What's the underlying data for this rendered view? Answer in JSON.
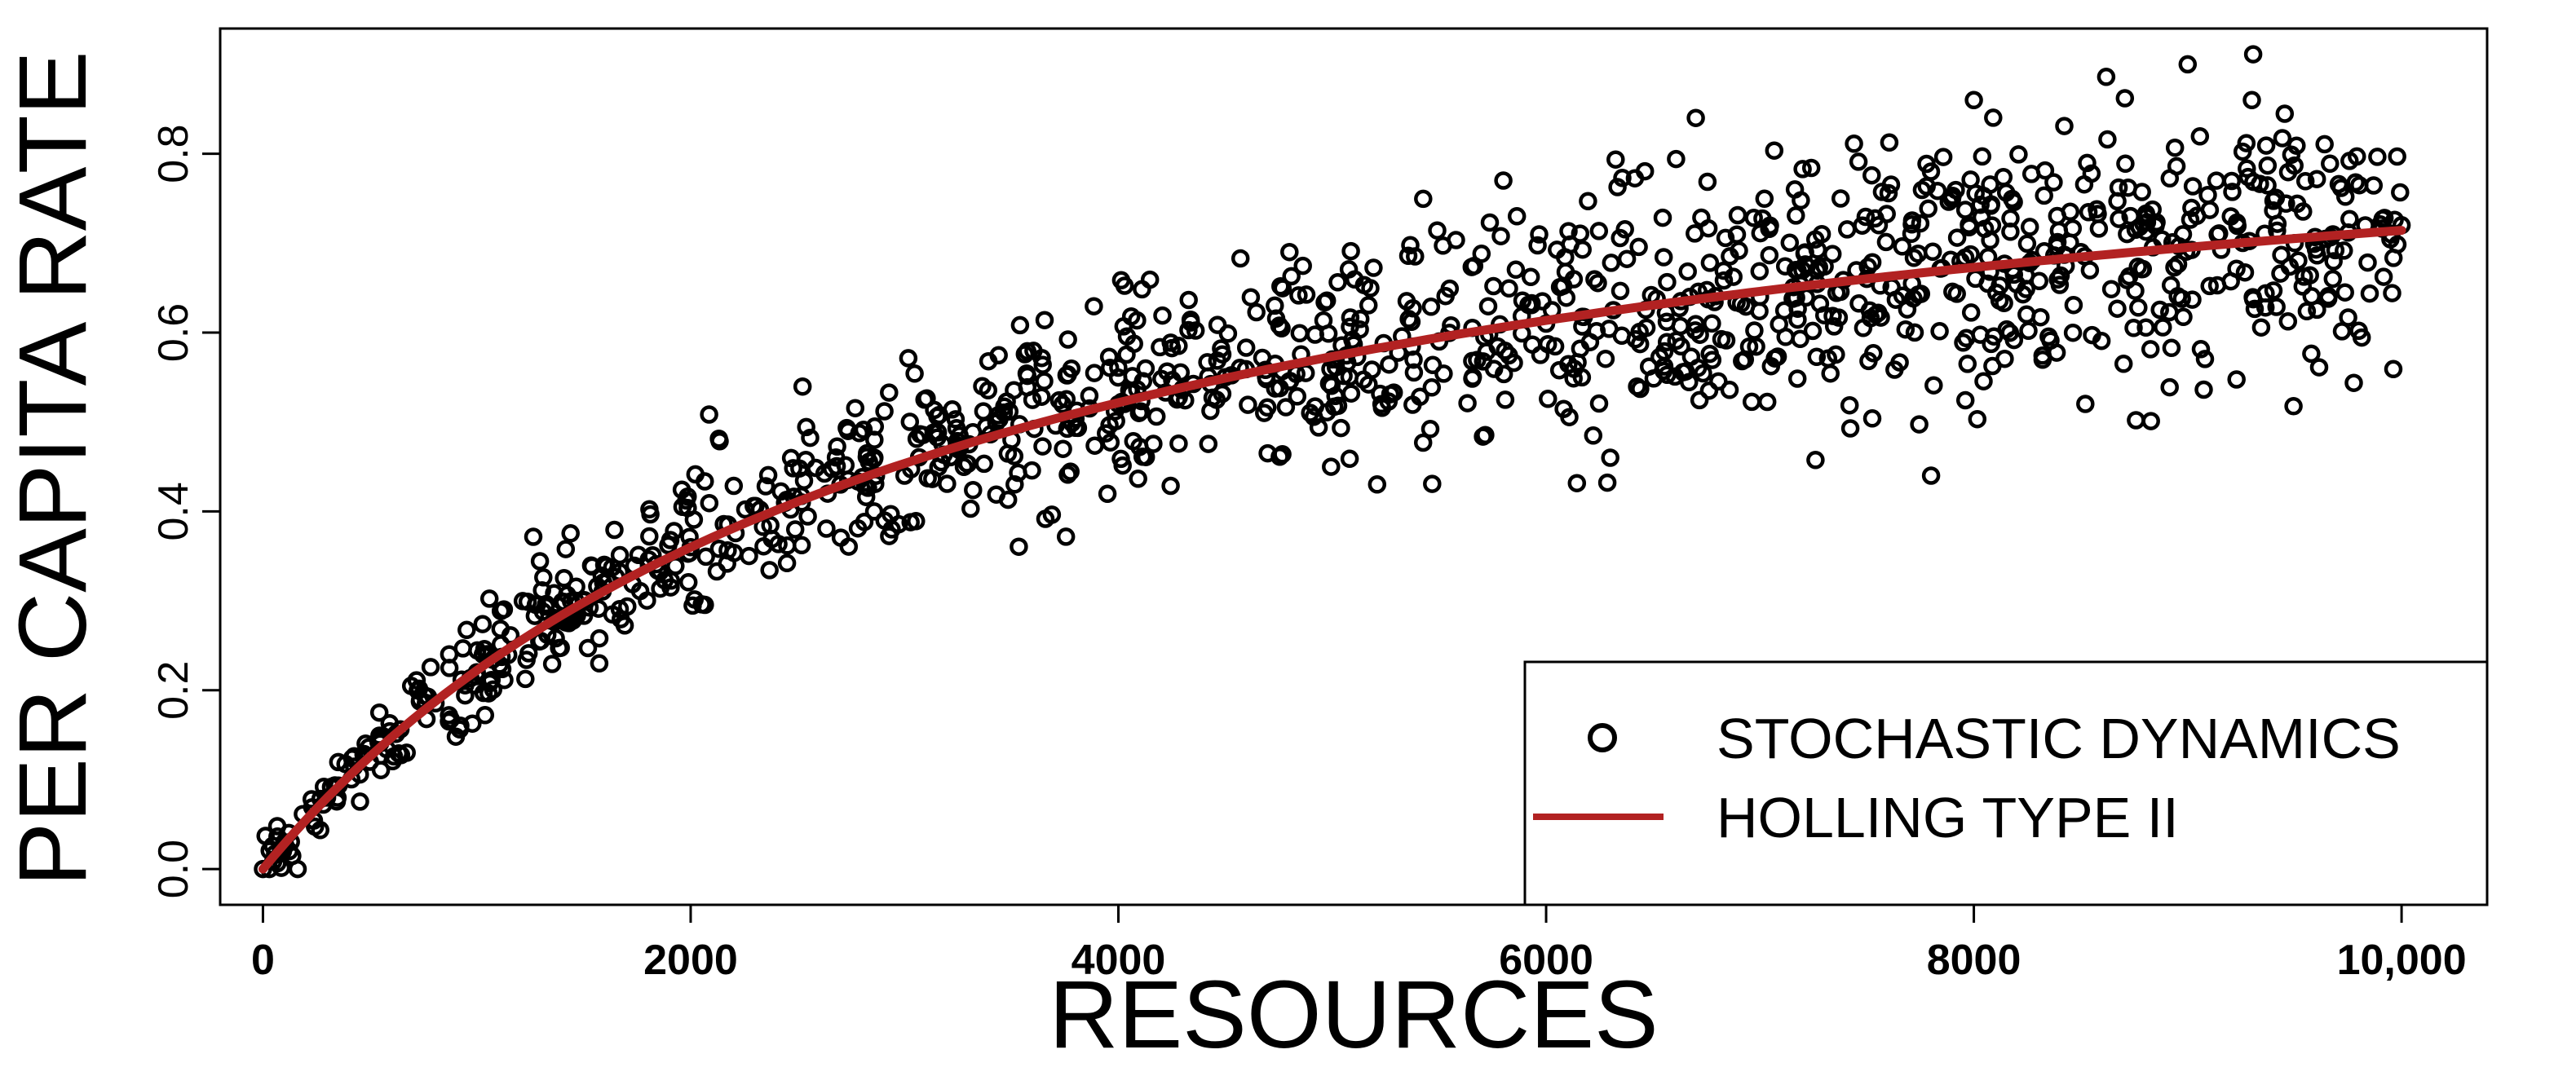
{
  "chart_data": {
    "type": "scatter",
    "title": "",
    "xlabel": "RESOURCES",
    "ylabel": "PER CAPITA RATE",
    "xlim": [
      -200,
      10400
    ],
    "ylim": [
      -0.04,
      0.94
    ],
    "x_ticks": [
      0,
      2000,
      4000,
      6000,
      8000,
      10000
    ],
    "x_tick_labels": [
      "0",
      "2000",
      "4000",
      "6000",
      "8000",
      "10,000"
    ],
    "y_ticks": [
      0.0,
      0.2,
      0.4,
      0.6,
      0.8
    ],
    "y_tick_labels": [
      "0.0",
      "0.2",
      "0.4",
      "0.6",
      "0.8"
    ],
    "grid": false,
    "legend_position": "bottom-right",
    "legend": [
      {
        "label": "STOCHASTIC DYNAMICS",
        "marker": "open-circle",
        "color": "#000000"
      },
      {
        "label": "HOLLING TYPE II",
        "marker": "line",
        "color": "#b22222"
      }
    ],
    "series": [
      {
        "name": "STOCHASTIC DYNAMICS",
        "kind": "scatter",
        "color": "#000000",
        "points": 1200,
        "x_range": [
          0,
          10000
        ],
        "approx_points": [
          [
            0,
            0.0
          ],
          [
            100,
            0.03
          ],
          [
            300,
            0.08
          ],
          [
            500,
            0.12
          ],
          [
            1000,
            0.22
          ],
          [
            1500,
            0.3
          ],
          [
            2000,
            0.36
          ],
          [
            2700,
            0.43
          ],
          [
            3000,
            0.44
          ],
          [
            3500,
            0.48
          ],
          [
            4000,
            0.52
          ],
          [
            4500,
            0.55
          ],
          [
            4800,
            0.69
          ],
          [
            5000,
            0.57
          ],
          [
            5500,
            0.59
          ],
          [
            5800,
            0.77
          ],
          [
            6000,
            0.61
          ],
          [
            6300,
            0.46
          ],
          [
            6700,
            0.84
          ],
          [
            7000,
            0.64
          ],
          [
            7500,
            0.66
          ],
          [
            7800,
            0.44
          ],
          [
            8000,
            0.86
          ],
          [
            8500,
            0.69
          ],
          [
            9000,
            0.9
          ],
          [
            9300,
            0.86
          ],
          [
            9500,
            0.7
          ],
          [
            10000,
            0.72
          ]
        ]
      },
      {
        "name": "HOLLING TYPE II",
        "kind": "line",
        "color": "#b22222",
        "equation": "y = a*x / (1 + b*x)",
        "params": {
          "a": 0.00029,
          "b": 0.000306
        },
        "x_range": [
          0,
          10000
        ]
      }
    ]
  }
}
